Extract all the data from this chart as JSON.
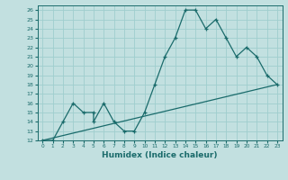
{
  "title": "",
  "xlabel": "Humidex (Indice chaleur)",
  "bg_color": "#c2e0e0",
  "line_color": "#1a6b6b",
  "grid_color": "#9fcece",
  "xlim": [
    -0.5,
    23.5
  ],
  "ylim": [
    12,
    26.5
  ],
  "xticks": [
    0,
    1,
    2,
    3,
    4,
    5,
    6,
    7,
    8,
    9,
    10,
    11,
    12,
    13,
    14,
    15,
    16,
    17,
    18,
    19,
    20,
    21,
    22,
    23
  ],
  "yticks": [
    12,
    13,
    14,
    15,
    16,
    17,
    18,
    19,
    20,
    21,
    22,
    23,
    24,
    25,
    26
  ],
  "line1_x": [
    0,
    1,
    2,
    3,
    4,
    5,
    5,
    6,
    7,
    8,
    9,
    10,
    11,
    12,
    13,
    14,
    15,
    16,
    17,
    18,
    19,
    20,
    21,
    22,
    23
  ],
  "line1_y": [
    12,
    12,
    14,
    16,
    15,
    15,
    14,
    16,
    14,
    13,
    13,
    15,
    18,
    21,
    23,
    26,
    26,
    24,
    25,
    23,
    21,
    22,
    21,
    19,
    18
  ],
  "line2_x": [
    0,
    23
  ],
  "line2_y": [
    12,
    18
  ]
}
